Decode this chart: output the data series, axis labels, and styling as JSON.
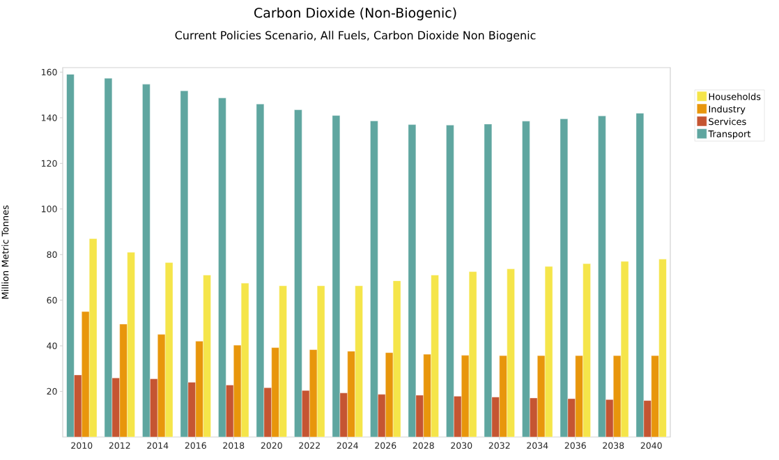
{
  "chart_data": {
    "type": "bar",
    "title": "Carbon Dioxide (Non-Biogenic)",
    "subtitle": "Current Policies Scenario, All Fuels, Carbon Dioxide Non Biogenic",
    "ylabel": "Million Metric Tonnes",
    "categories": [
      "2010",
      "2012",
      "2014",
      "2016",
      "2018",
      "2020",
      "2022",
      "2024",
      "2026",
      "2028",
      "2030",
      "2032",
      "2034",
      "2036",
      "2038",
      "2040"
    ],
    "series": [
      {
        "name": "Transport",
        "color": "#5fa6a0",
        "values": [
          159.1,
          157.3,
          154.7,
          151.8,
          148.7,
          146,
          143.5,
          141,
          138.6,
          137,
          136.8,
          137.2,
          138.5,
          139.5,
          140.8,
          142
        ]
      },
      {
        "name": "Services",
        "color": "#c55532",
        "values": [
          27.2,
          25.9,
          25.5,
          24,
          22.8,
          21.6,
          20.4,
          19.3,
          18.7,
          18.3,
          17.9,
          17.5,
          17.1,
          16.8,
          16.4,
          16
        ]
      },
      {
        "name": "Industry",
        "color": "#e8960c",
        "values": [
          55,
          49.5,
          45,
          42,
          40.3,
          39.2,
          38.3,
          37.6,
          37,
          36.3,
          35.8,
          35.7,
          35.7,
          35.7,
          35.7,
          35.7
        ]
      },
      {
        "name": "Households",
        "color": "#f5e54a",
        "values": [
          87,
          81,
          76.5,
          71,
          67.5,
          66.3,
          66.3,
          66.3,
          68.5,
          71,
          72.5,
          73.7,
          74.8,
          76,
          77,
          78
        ]
      }
    ],
    "ylim": [
      0,
      162
    ],
    "yticks": [
      20,
      40,
      60,
      80,
      100,
      120,
      140,
      160
    ],
    "grid": false,
    "legend": "right"
  }
}
